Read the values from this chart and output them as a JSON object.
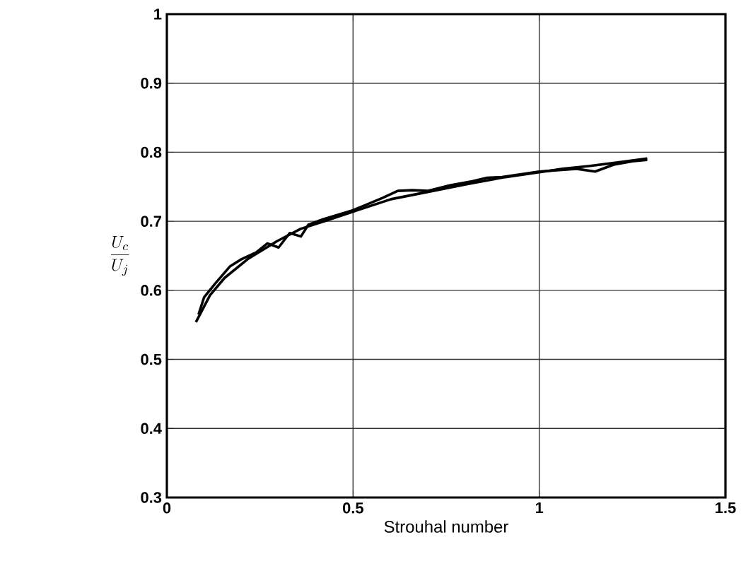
{
  "chart_data": {
    "type": "line",
    "xlabel": "Strouhal number",
    "ylabel": "\\frac{U_c}{U_j}",
    "xlim": [
      0,
      1.5
    ],
    "ylim": [
      0.3,
      1
    ],
    "xticks": [
      0,
      0.5,
      1,
      1.5
    ],
    "yticks": [
      0.3,
      0.4,
      0.5,
      0.6,
      0.7,
      0.8,
      0.9,
      1
    ],
    "grid": true,
    "marker": "none",
    "line_style": "solid",
    "series": [
      {
        "color": "#000000",
        "x": [
          0.078,
          0.116,
          0.155,
          0.219,
          0.295,
          0.359,
          0.423,
          0.5,
          0.602,
          0.705,
          0.807,
          0.909,
          1.0,
          1.063,
          1.133,
          1.222,
          1.29
        ],
        "values": [
          0.554,
          0.593,
          0.618,
          0.646,
          0.671,
          0.689,
          0.7,
          0.714,
          0.732,
          0.743,
          0.754,
          0.764,
          0.771,
          0.776,
          0.78,
          0.786,
          0.791
        ]
      },
      {
        "color": "#000000",
        "x": [
          0.085,
          0.1,
          0.13,
          0.17,
          0.2,
          0.24,
          0.27,
          0.3,
          0.33,
          0.36,
          0.38,
          0.42,
          0.5,
          0.58,
          0.62,
          0.66,
          0.7,
          0.76,
          0.82,
          0.86,
          0.9,
          1.0,
          1.1,
          1.15,
          1.2,
          1.25,
          1.29
        ],
        "values": [
          0.565,
          0.59,
          0.61,
          0.635,
          0.645,
          0.655,
          0.668,
          0.662,
          0.683,
          0.678,
          0.695,
          0.703,
          0.716,
          0.734,
          0.744,
          0.745,
          0.744,
          0.752,
          0.758,
          0.763,
          0.764,
          0.772,
          0.776,
          0.772,
          0.782,
          0.787,
          0.789
        ]
      }
    ]
  }
}
